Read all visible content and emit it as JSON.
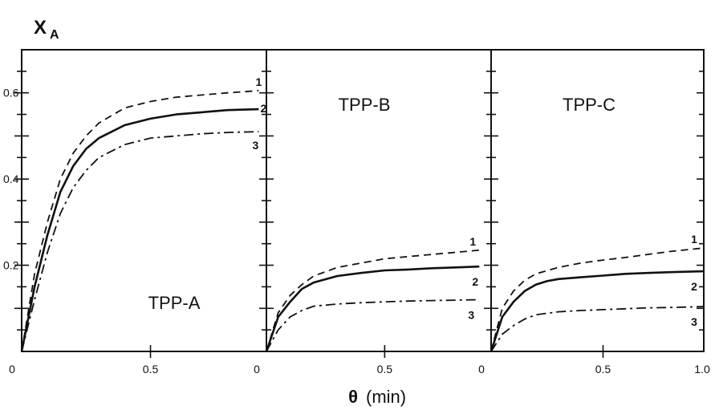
{
  "chart_data": {
    "type": "line",
    "y_label": {
      "main": "X",
      "sub": "A"
    },
    "x_label": {
      "symbol": "θ",
      "unit": "(min)"
    },
    "y_ticks": [
      {
        "value": 0.2,
        "label": "0.2"
      },
      {
        "value": 0.4,
        "label": "0.4"
      },
      {
        "value": 0.6,
        "label": "0.6"
      }
    ],
    "x_ticks": [
      {
        "value": 0.0,
        "label": "0"
      },
      {
        "value": 0.5,
        "label": "0.5"
      }
    ],
    "x_end_label": "1.0",
    "ylim": [
      0,
      0.7
    ],
    "xlim": [
      0,
      0.95
    ],
    "line_styles": {
      "1": "dashed",
      "2": "solid",
      "3": "dash-dot"
    },
    "panels": [
      {
        "title": "TPP-A",
        "series": [
          {
            "name": "1",
            "points": [
              [
                0,
                0
              ],
              [
                0.05,
                0.18
              ],
              [
                0.1,
                0.3
              ],
              [
                0.15,
                0.4
              ],
              [
                0.2,
                0.46
              ],
              [
                0.25,
                0.5
              ],
              [
                0.3,
                0.53
              ],
              [
                0.4,
                0.565
              ],
              [
                0.5,
                0.58
              ],
              [
                0.6,
                0.59
              ],
              [
                0.7,
                0.595
              ],
              [
                0.8,
                0.6
              ],
              [
                0.92,
                0.605
              ]
            ]
          },
          {
            "name": "2",
            "points": [
              [
                0,
                0
              ],
              [
                0.05,
                0.15
              ],
              [
                0.1,
                0.27
              ],
              [
                0.15,
                0.37
              ],
              [
                0.2,
                0.43
              ],
              [
                0.25,
                0.47
              ],
              [
                0.3,
                0.495
              ],
              [
                0.4,
                0.525
              ],
              [
                0.5,
                0.54
              ],
              [
                0.6,
                0.55
              ],
              [
                0.7,
                0.555
              ],
              [
                0.8,
                0.56
              ],
              [
                0.92,
                0.562
              ]
            ]
          },
          {
            "name": "3",
            "points": [
              [
                0,
                0
              ],
              [
                0.05,
                0.12
              ],
              [
                0.1,
                0.23
              ],
              [
                0.15,
                0.32
              ],
              [
                0.2,
                0.38
              ],
              [
                0.25,
                0.42
              ],
              [
                0.3,
                0.45
              ],
              [
                0.4,
                0.48
              ],
              [
                0.5,
                0.495
              ],
              [
                0.6,
                0.5
              ],
              [
                0.7,
                0.505
              ],
              [
                0.8,
                0.508
              ],
              [
                0.92,
                0.51
              ]
            ]
          }
        ]
      },
      {
        "title": "TPP-B",
        "series": [
          {
            "name": "1",
            "points": [
              [
                0,
                0
              ],
              [
                0.05,
                0.09
              ],
              [
                0.1,
                0.13
              ],
              [
                0.15,
                0.155
              ],
              [
                0.2,
                0.175
              ],
              [
                0.3,
                0.195
              ],
              [
                0.4,
                0.205
              ],
              [
                0.5,
                0.215
              ],
              [
                0.6,
                0.22
              ],
              [
                0.7,
                0.225
              ],
              [
                0.8,
                0.23
              ],
              [
                0.9,
                0.235
              ]
            ]
          },
          {
            "name": "2",
            "points": [
              [
                0,
                0
              ],
              [
                0.05,
                0.08
              ],
              [
                0.1,
                0.115
              ],
              [
                0.15,
                0.145
              ],
              [
                0.2,
                0.16
              ],
              [
                0.3,
                0.175
              ],
              [
                0.4,
                0.182
              ],
              [
                0.5,
                0.188
              ],
              [
                0.6,
                0.19
              ],
              [
                0.7,
                0.193
              ],
              [
                0.8,
                0.195
              ],
              [
                0.9,
                0.197
              ]
            ]
          },
          {
            "name": "3",
            "points": [
              [
                0,
                0
              ],
              [
                0.05,
                0.05
              ],
              [
                0.1,
                0.08
              ],
              [
                0.15,
                0.095
              ],
              [
                0.2,
                0.105
              ],
              [
                0.3,
                0.11
              ],
              [
                0.4,
                0.113
              ],
              [
                0.5,
                0.115
              ],
              [
                0.6,
                0.117
              ],
              [
                0.7,
                0.118
              ],
              [
                0.8,
                0.119
              ],
              [
                0.9,
                0.12
              ]
            ]
          }
        ]
      },
      {
        "title": "TPP-C",
        "series": [
          {
            "name": "1",
            "points": [
              [
                0,
                0
              ],
              [
                0.05,
                0.1
              ],
              [
                0.1,
                0.14
              ],
              [
                0.15,
                0.165
              ],
              [
                0.2,
                0.18
              ],
              [
                0.3,
                0.195
              ],
              [
                0.4,
                0.205
              ],
              [
                0.5,
                0.212
              ],
              [
                0.6,
                0.218
              ],
              [
                0.7,
                0.225
              ],
              [
                0.8,
                0.232
              ],
              [
                0.95,
                0.24
              ]
            ]
          },
          {
            "name": "2",
            "points": [
              [
                0,
                0
              ],
              [
                0.05,
                0.08
              ],
              [
                0.1,
                0.115
              ],
              [
                0.15,
                0.14
              ],
              [
                0.2,
                0.155
              ],
              [
                0.25,
                0.163
              ],
              [
                0.3,
                0.168
              ],
              [
                0.4,
                0.172
              ],
              [
                0.5,
                0.176
              ],
              [
                0.6,
                0.18
              ],
              [
                0.7,
                0.182
              ],
              [
                0.8,
                0.184
              ],
              [
                0.95,
                0.186
              ]
            ]
          },
          {
            "name": "3",
            "points": [
              [
                0,
                0
              ],
              [
                0.05,
                0.04
              ],
              [
                0.1,
                0.06
              ],
              [
                0.15,
                0.075
              ],
              [
                0.2,
                0.085
              ],
              [
                0.3,
                0.092
              ],
              [
                0.4,
                0.095
              ],
              [
                0.5,
                0.097
              ],
              [
                0.6,
                0.099
              ],
              [
                0.7,
                0.101
              ],
              [
                0.8,
                0.102
              ],
              [
                0.95,
                0.104
              ]
            ]
          }
        ]
      }
    ]
  }
}
